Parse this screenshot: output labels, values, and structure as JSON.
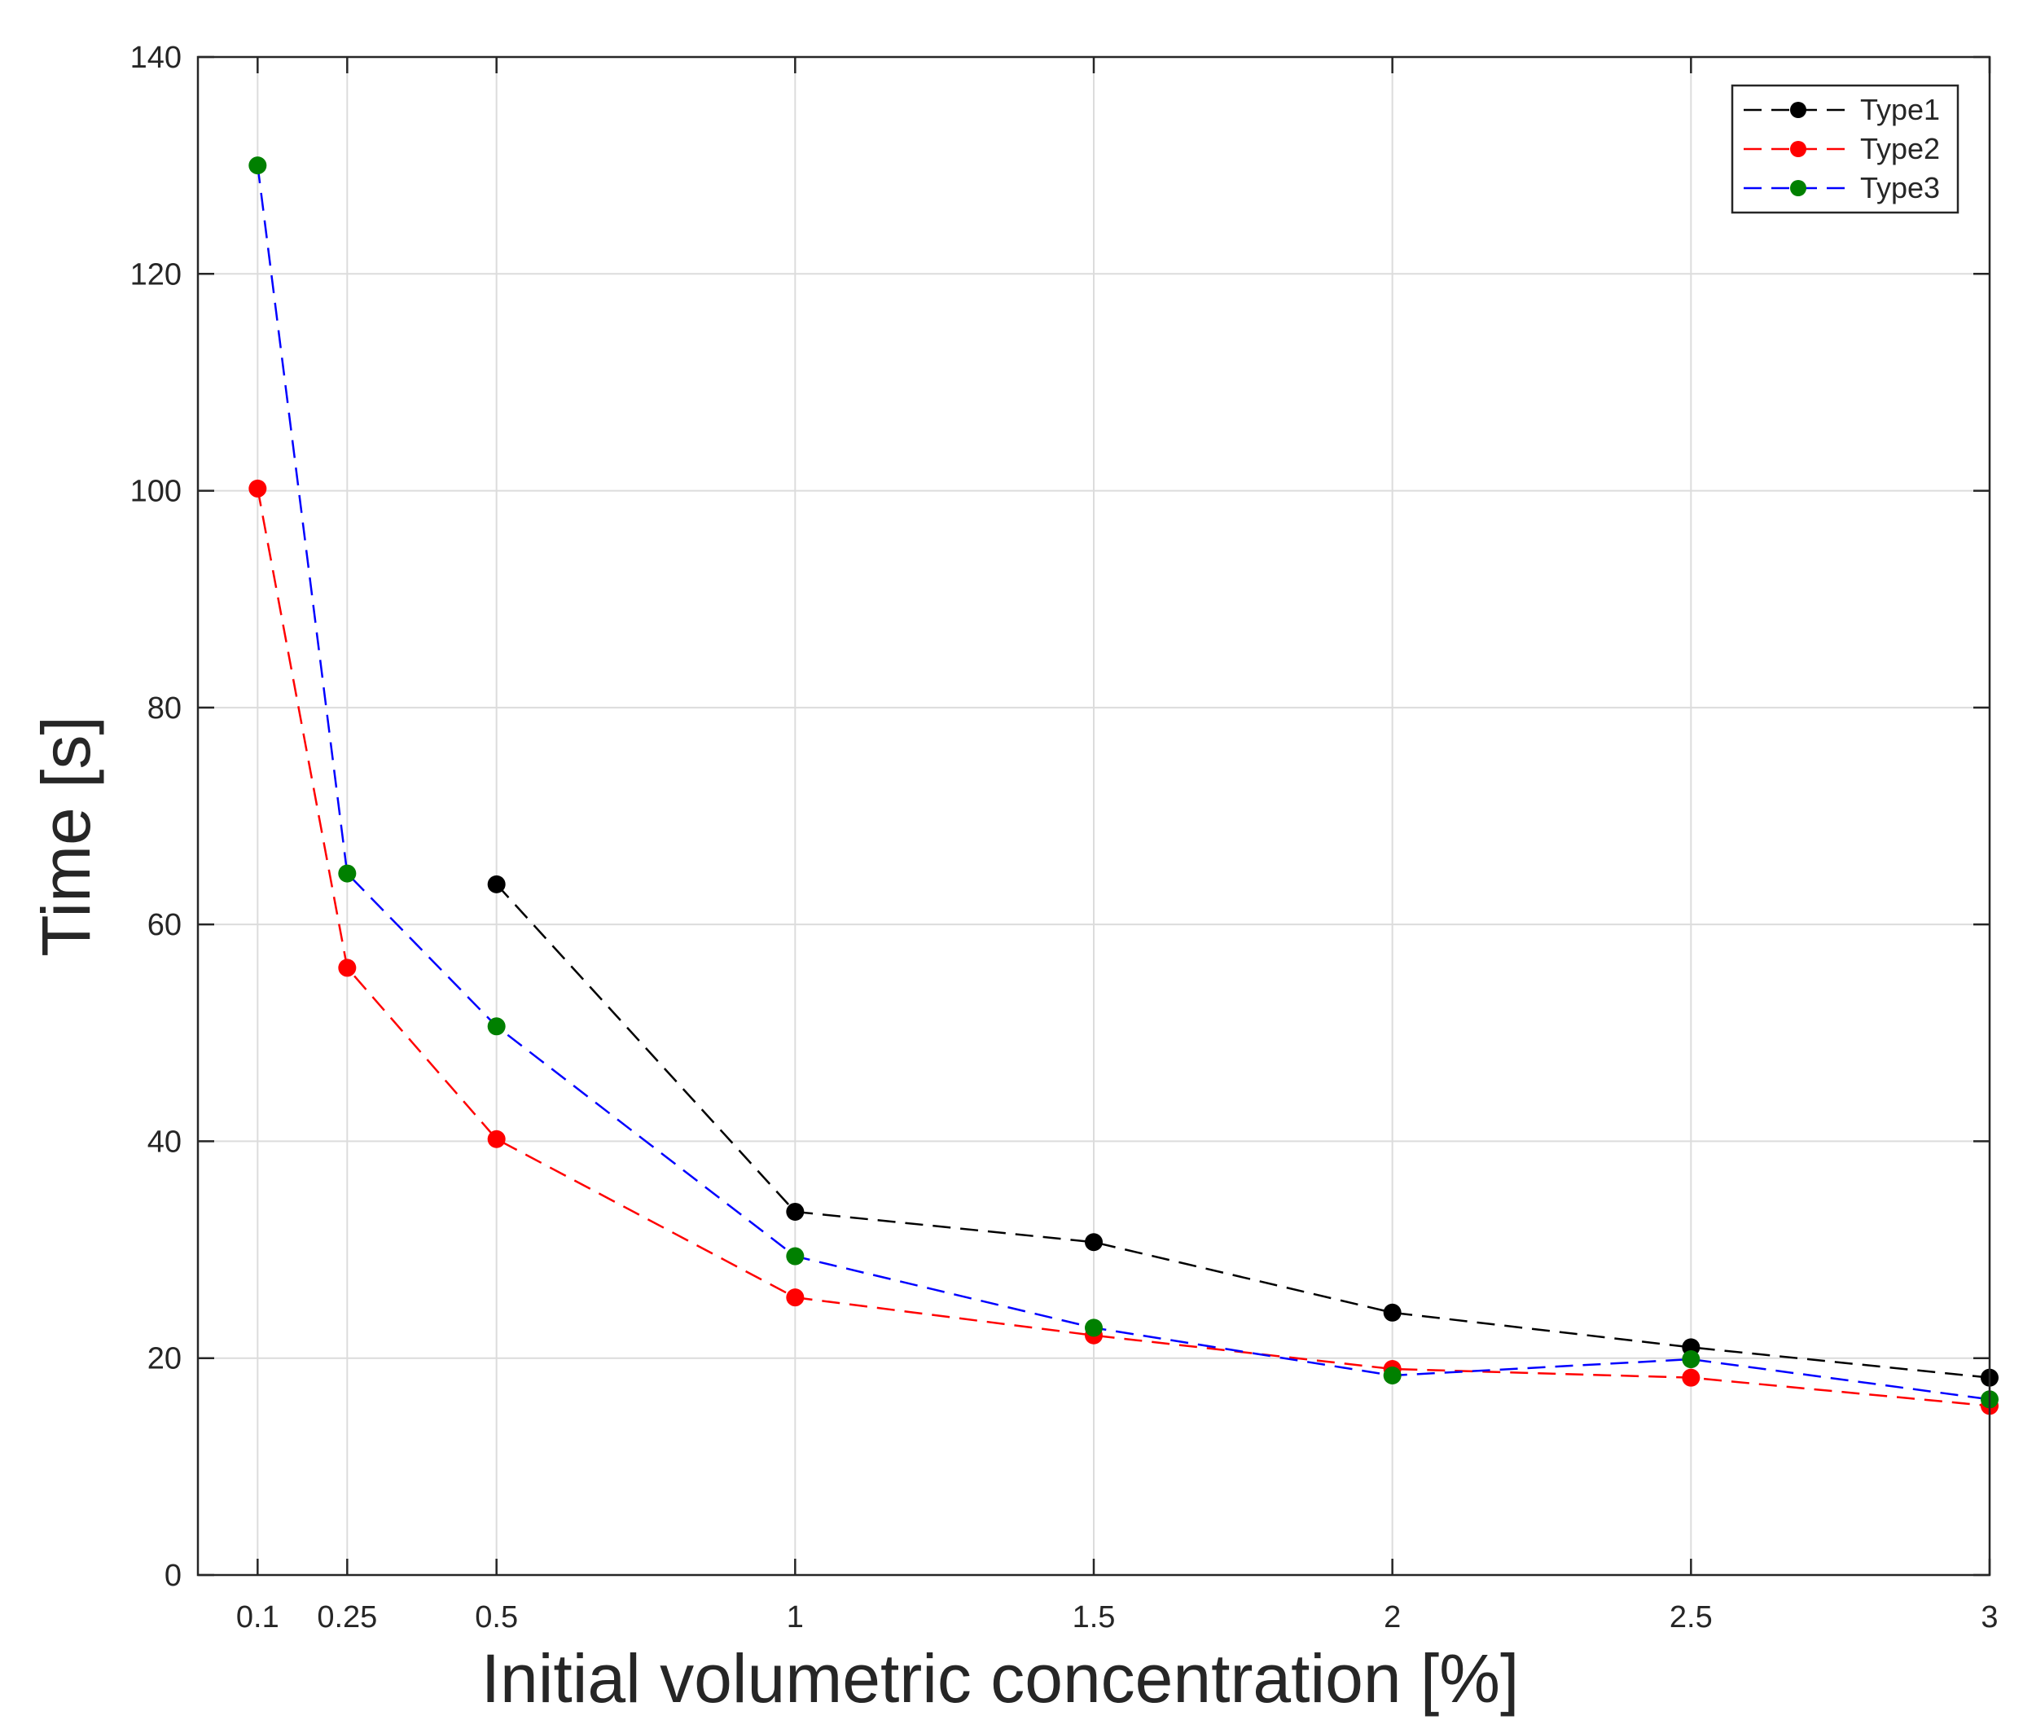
{
  "chart_data": {
    "type": "line",
    "title": "",
    "xlabel": "Initial volumetric concentration [%]",
    "ylabel": "Time [s]",
    "xlim": [
      0,
      3
    ],
    "ylim": [
      0,
      140
    ],
    "grid": true,
    "x_ticks": [
      0.1,
      0.25,
      0.5,
      1,
      1.5,
      2,
      2.5,
      3
    ],
    "x_tick_labels": [
      "0.1",
      "0.25",
      "0.5",
      "1",
      "1.5",
      "2",
      "2.5",
      "3"
    ],
    "y_ticks": [
      0,
      20,
      40,
      60,
      80,
      100,
      120,
      140
    ],
    "y_tick_labels": [
      "0",
      "20",
      "40",
      "60",
      "80",
      "100",
      "120",
      "140"
    ],
    "legend_position": "top-right",
    "series": [
      {
        "name": "Type1",
        "line_color": "#000000",
        "marker_color": "#000000",
        "x": [
          0.5,
          1,
          1.5,
          2,
          2.5,
          3
        ],
        "values": [
          63.7,
          33.5,
          30.7,
          24.2,
          21.0,
          18.2
        ]
      },
      {
        "name": "Type2",
        "line_color": "#ff0000",
        "marker_color": "#ff0000",
        "x": [
          0.1,
          0.25,
          0.5,
          1,
          1.5,
          2,
          2.5,
          3
        ],
        "values": [
          100.2,
          56.0,
          40.2,
          25.6,
          22.1,
          19.0,
          18.2,
          15.6
        ]
      },
      {
        "name": "Type3",
        "line_color": "#0000ff",
        "marker_color": "#008000",
        "x": [
          0.1,
          0.25,
          0.5,
          1,
          1.5,
          2,
          2.5,
          3
        ],
        "values": [
          130.0,
          64.7,
          50.6,
          29.4,
          22.8,
          18.4,
          19.9,
          16.2
        ]
      }
    ]
  }
}
